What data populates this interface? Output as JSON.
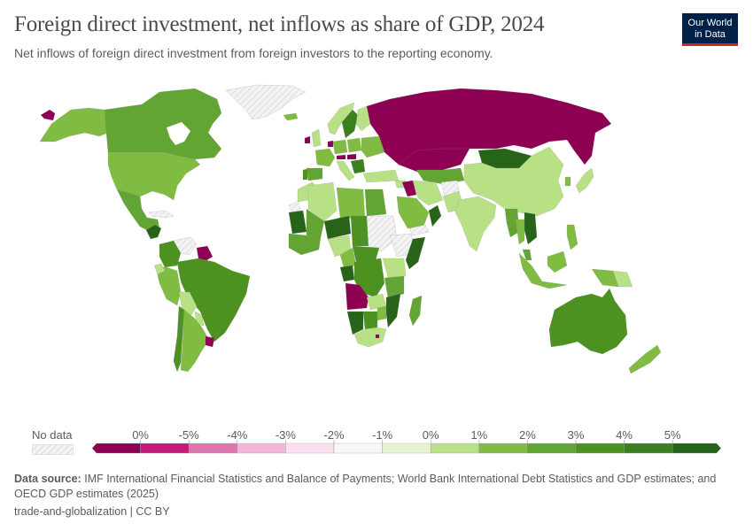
{
  "header": {
    "title": "Foreign direct investment, net inflows as share of GDP, 2024",
    "subtitle": "Net inflows of foreign direct investment from foreign investors to the reporting economy.",
    "logo_line1": "Our World",
    "logo_line2": "in Data"
  },
  "legend": {
    "no_data_label": "No data",
    "bins": [
      {
        "label": "0%",
        "color": "#8e0152"
      },
      {
        "label": "-5%",
        "color": "#c51b7d"
      },
      {
        "label": "-4%",
        "color": "#de77ae"
      },
      {
        "label": "-3%",
        "color": "#f1b6da"
      },
      {
        "label": "-2%",
        "color": "#fde0ef"
      },
      {
        "label": "-1%",
        "color": "#f7f7f7"
      },
      {
        "label": "0%",
        "color": "#e6f5d0"
      },
      {
        "label": "1%",
        "color": "#b8e186"
      },
      {
        "label": "2%",
        "color": "#7fbc41"
      },
      {
        "label": "3%",
        "color": "#63a534"
      },
      {
        "label": "4%",
        "color": "#4d9221"
      },
      {
        "label": "5%",
        "color": "#3b7f1f"
      }
    ],
    "last_color": "#276419"
  },
  "footer": {
    "source_label": "Data source:",
    "source_text": "IMF International Financial Statistics and Balance of Payments; World Bank International Debt Statistics and GDP estimates; and OECD GDP estimates (2025)",
    "license": "trade-and-globalization | CC BY"
  },
  "chart_data": {
    "type": "choropleth-map",
    "title": "Foreign direct investment, net inflows as share of GDP, 2024",
    "subtitle": "Net inflows of foreign direct investment from foreign investors to the reporting economy.",
    "unit": "% of GDP",
    "year": 2024,
    "legend_bins": [
      "<-5%",
      "-5% to -4%",
      "-4% to -3%",
      "-3% to -2%",
      "-2% to -1%",
      "-1% to 0%",
      "0% to 1%",
      "1% to 2%",
      "2% to 3%",
      "3% to 4%",
      "4% to 5%",
      ">5%"
    ],
    "legend_tick_labels": [
      "0%",
      "-5%",
      "-4%",
      "-3%",
      "-2%",
      "-1%",
      "0%",
      "1%",
      "2%",
      "3%",
      "4%",
      "5%"
    ],
    "regions_estimated": [
      {
        "region": "Russia",
        "bin": "<-5%"
      },
      {
        "region": "Kazakhstan",
        "bin": "<-5%"
      },
      {
        "region": "Angola",
        "bin": "<-5%"
      },
      {
        "region": "Iraq",
        "bin": "<-5%"
      },
      {
        "region": "Uruguay",
        "bin": "<-5%"
      },
      {
        "region": "Suriname/Guyana",
        "bin": "<-5%"
      },
      {
        "region": "Ireland",
        "bin": "<-5%"
      },
      {
        "region": "Netherlands",
        "bin": "<-5%"
      },
      {
        "region": "Austria",
        "bin": "<-5%"
      },
      {
        "region": "Hungary",
        "bin": "<-5%"
      },
      {
        "region": "Lesotho",
        "bin": "<-5%"
      },
      {
        "region": "United States",
        "bin": "1% to 2%"
      },
      {
        "region": "Canada",
        "bin": "2% to 3%"
      },
      {
        "region": "Mexico",
        "bin": "2% to 3%"
      },
      {
        "region": "Brazil",
        "bin": "3% to 4%"
      },
      {
        "region": "Colombia",
        "bin": "3% to 4%"
      },
      {
        "region": "Argentina",
        "bin": "1% to 2%"
      },
      {
        "region": "Chile",
        "bin": "3% to 4%"
      },
      {
        "region": "Peru",
        "bin": "1% to 2%"
      },
      {
        "region": "Bolivia",
        "bin": "0% to 1%"
      },
      {
        "region": "Paraguay",
        "bin": "0% to 1%"
      },
      {
        "region": "China",
        "bin": "0% to 1%"
      },
      {
        "region": "India",
        "bin": "0% to 1%"
      },
      {
        "region": "Mongolia",
        "bin": ">5%"
      },
      {
        "region": "Australia",
        "bin": "3% to 4%"
      },
      {
        "region": "New Zealand",
        "bin": "1% to 2%"
      },
      {
        "region": "Indonesia",
        "bin": "1% to 2%"
      },
      {
        "region": "Vietnam",
        "bin": ">5%"
      },
      {
        "region": "Cambodia",
        "bin": ">5%"
      },
      {
        "region": "Japan",
        "bin": "0% to 1%"
      },
      {
        "region": "South Korea",
        "bin": "1% to 2%"
      },
      {
        "region": "Sweden",
        "bin": "4% to 5%"
      },
      {
        "region": "Norway",
        "bin": "0% to 1%"
      },
      {
        "region": "Finland",
        "bin": "0% to 1%"
      },
      {
        "region": "United Kingdom",
        "bin": "0% to 1%"
      },
      {
        "region": "France",
        "bin": "1% to 2%"
      },
      {
        "region": "Spain",
        "bin": "2% to 3%"
      },
      {
        "region": "Portugal",
        "bin": "3% to 4%"
      },
      {
        "region": "Germany",
        "bin": "1% to 2%"
      },
      {
        "region": "Italy",
        "bin": "0% to 1%"
      },
      {
        "region": "Turkey",
        "bin": "0% to 1%"
      },
      {
        "region": "Iran",
        "bin": "0% to 1%"
      },
      {
        "region": "Saudi Arabia",
        "bin": "1% to 2%"
      },
      {
        "region": "Oman",
        "bin": ">5%"
      },
      {
        "region": "Egypt",
        "bin": "2% to 3%"
      },
      {
        "region": "Algeria",
        "bin": "0% to 1%"
      },
      {
        "region": "Libya",
        "bin": "1% to 2%"
      },
      {
        "region": "Mali",
        "bin": ">5%"
      },
      {
        "region": "Niger",
        "bin": ">5%"
      },
      {
        "region": "Nigeria",
        "bin": "0% to 1%"
      },
      {
        "region": "DR Congo",
        "bin": "3% to 4%"
      },
      {
        "region": "Somalia",
        "bin": ">5%"
      },
      {
        "region": "Kenya",
        "bin": "0% to 1%"
      },
      {
        "region": "Tanzania",
        "bin": "2% to 3%"
      },
      {
        "region": "Mozambique",
        "bin": ">5%"
      },
      {
        "region": "Madagascar",
        "bin": "2% to 3%"
      },
      {
        "region": "Namibia",
        "bin": ">5%"
      },
      {
        "region": "South Africa",
        "bin": "0% to 1%"
      },
      {
        "region": "Zambia",
        "bin": "0% to 1%"
      },
      {
        "region": "Greenland",
        "bin": "No data"
      },
      {
        "region": "Sudan",
        "bin": "No data"
      },
      {
        "region": "Ethiopia",
        "bin": "No data"
      },
      {
        "region": "Afghanistan",
        "bin": "No data"
      },
      {
        "region": "Venezuela",
        "bin": "No data"
      },
      {
        "region": "Cuba",
        "bin": "No data"
      }
    ]
  }
}
